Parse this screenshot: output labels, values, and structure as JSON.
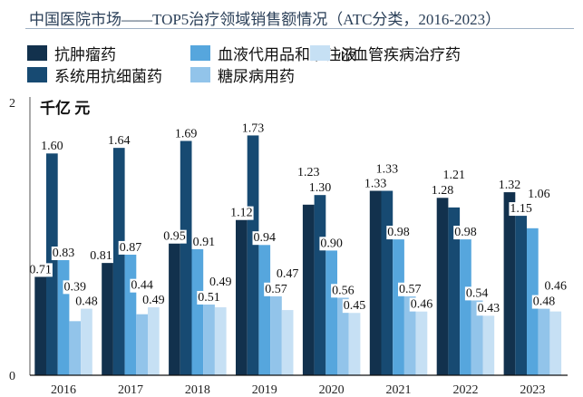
{
  "title": "中国医院市场——TOP5治疗领域销售额情况（ATC分类，2016-2023）",
  "chart_data": {
    "type": "bar",
    "title": "中国医院市场——TOP5治疗领域销售额情况（ATC分类，2016-2023）",
    "ylabel": "千亿 元",
    "xlabel": "",
    "ylim": [
      0,
      2
    ],
    "yticks": [
      "0",
      "2"
    ],
    "grid": false,
    "legend_position": "top",
    "categories": [
      "2016",
      "2017",
      "2018",
      "2019",
      "2020",
      "2021",
      "2022",
      "2023"
    ],
    "series": [
      {
        "name": "抗肿瘤药",
        "color": "#12314d",
        "values": [
          0.71,
          0.81,
          0.95,
          1.12,
          1.23,
          1.33,
          1.28,
          1.32
        ]
      },
      {
        "name": "系统用抗细菌药",
        "color": "#174a72",
        "values": [
          1.6,
          1.64,
          1.69,
          1.73,
          1.3,
          1.33,
          1.21,
          1.15
        ]
      },
      {
        "name": "血液代用品和灌注液",
        "color": "#56a6dd",
        "values": [
          0.83,
          0.87,
          0.91,
          0.94,
          0.9,
          0.98,
          0.98,
          1.06
        ]
      },
      {
        "name": "糖尿病用药",
        "color": "#92c4ea",
        "values": [
          0.39,
          0.44,
          0.51,
          0.57,
          0.56,
          0.57,
          0.54,
          0.48
        ]
      },
      {
        "name": "心血管疾病治疗药",
        "color": "#c6e0f4",
        "values": [
          0.48,
          0.49,
          0.49,
          0.47,
          0.45,
          0.46,
          0.43,
          0.46
        ]
      }
    ]
  }
}
